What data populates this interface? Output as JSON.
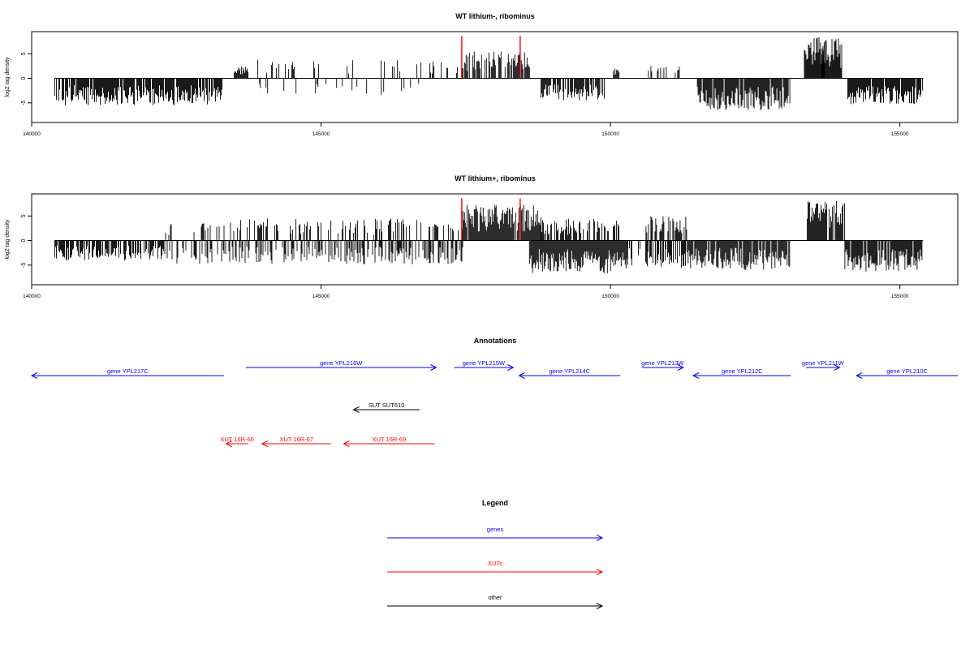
{
  "chart_data": [
    {
      "type": "bar",
      "title": "WT lithium-, ribominus",
      "xlabel": "",
      "ylabel": "log2 tag density",
      "xlim": [
        140000,
        156000
      ],
      "ylim": [
        -9,
        9.5
      ],
      "xticks": [
        140000,
        145000,
        150000,
        155000
      ],
      "yticks": [
        -5,
        0,
        5
      ],
      "ytick_labels": [
        "-5",
        "0",
        "5"
      ],
      "highlight_color": "#ff0000",
      "highlight_x": [
        147430,
        148440
      ],
      "highlight_y": 8.6,
      "plus_strand_segments": [
        {
          "from": 143500,
          "to": 143750,
          "max": 2.5
        },
        {
          "from": 143780,
          "to": 147450,
          "max": 3.8,
          "density": 0.12
        },
        {
          "from": 147450,
          "to": 148600,
          "max": 5.5,
          "density": 0.7
        },
        {
          "from": 150050,
          "to": 150150,
          "max": 2.0
        },
        {
          "from": 150600,
          "to": 151300,
          "max": 2.5,
          "density": 0.25
        },
        {
          "from": 153350,
          "to": 154000,
          "max": 8.5,
          "density": 0.95
        },
        {
          "from": 153650,
          "to": 153700,
          "max": 8.7
        }
      ],
      "minus_strand_segments": [
        {
          "from": 140400,
          "to": 143300,
          "max": -5.5,
          "density": 0.9
        },
        {
          "from": 143600,
          "to": 146700,
          "max": -3.5,
          "density": 0.08
        },
        {
          "from": 148800,
          "to": 149900,
          "max": -4.5,
          "density": 0.7
        },
        {
          "from": 151500,
          "to": 153100,
          "max": -6.5,
          "density": 0.9
        },
        {
          "from": 154100,
          "to": 155400,
          "max": -5.3,
          "density": 0.9
        }
      ]
    },
    {
      "type": "bar",
      "title": "WT lithium+, ribominus",
      "xlabel": "",
      "ylabel": "log2 tag density",
      "xlim": [
        140000,
        156000
      ],
      "ylim": [
        -9,
        9.5
      ],
      "xticks": [
        140000,
        145000,
        150000,
        155000
      ],
      "yticks": [
        -5,
        0,
        5
      ],
      "ytick_labels": [
        "-5",
        "0",
        "5"
      ],
      "highlight_color": "#ff0000",
      "highlight_x": [
        147430,
        148440
      ],
      "highlight_y": 8.6,
      "plus_strand_segments": [
        {
          "from": 142300,
          "to": 143500,
          "max": 3.8,
          "density": 0.25
        },
        {
          "from": 143500,
          "to": 147450,
          "max": 4.5,
          "density": 0.35
        },
        {
          "from": 147450,
          "to": 148800,
          "max": 7.3,
          "density": 0.95
        },
        {
          "from": 148800,
          "to": 150150,
          "max": 4.5,
          "density": 0.6
        },
        {
          "from": 150600,
          "to": 151350,
          "max": 5.0,
          "density": 0.6
        },
        {
          "from": 153400,
          "to": 154050,
          "max": 8.2,
          "density": 0.95
        }
      ],
      "minus_strand_segments": [
        {
          "from": 140400,
          "to": 142300,
          "max": -4.0,
          "density": 0.7
        },
        {
          "from": 142300,
          "to": 147450,
          "max": -4.8,
          "density": 0.45
        },
        {
          "from": 148600,
          "to": 150300,
          "max": -6.7,
          "density": 1.0
        },
        {
          "from": 150300,
          "to": 151300,
          "max": -5.5,
          "density": 0.6
        },
        {
          "from": 151300,
          "to": 153100,
          "max": -6.0,
          "density": 0.9
        },
        {
          "from": 154050,
          "to": 155400,
          "max": -6.3,
          "density": 0.9
        }
      ]
    }
  ],
  "annotations": {
    "title": "Annotations",
    "genes_color": "#0000ff",
    "xuts_color": "#ff0000",
    "other_color": "#000000",
    "genes": [
      {
        "label": "gene YPL217C",
        "start": 140000,
        "end": 143320,
        "strand": "-",
        "row": "low"
      },
      {
        "label": "gene YPL216W",
        "start": 143700,
        "end": 146990,
        "strand": "+",
        "row": "high"
      },
      {
        "label": "gene YPL215W",
        "start": 147300,
        "end": 148320,
        "strand": "+",
        "row": "high"
      },
      {
        "label": "gene YPL214C",
        "start": 148420,
        "end": 150170,
        "strand": "-",
        "row": "low"
      },
      {
        "label": "gene YPL213W",
        "start": 150540,
        "end": 151260,
        "strand": "+",
        "row": "high"
      },
      {
        "label": "gene YPL212C",
        "start": 151430,
        "end": 153120,
        "strand": "-",
        "row": "low"
      },
      {
        "label": "gene YPL211W",
        "start": 153380,
        "end": 153960,
        "strand": "+",
        "row": "high"
      },
      {
        "label": "gene YPL210C",
        "start": 154250,
        "end": 156000,
        "strand": "-",
        "row": "low"
      }
    ],
    "other": [
      {
        "label": "SUT SUT610",
        "start": 145560,
        "end": 146700,
        "strand": "-"
      }
    ],
    "xuts": [
      {
        "label": "XUT 16R-66",
        "start": 143360,
        "end": 143740,
        "strand": "-"
      },
      {
        "label": "XUT 16R-67",
        "start": 143980,
        "end": 145170,
        "strand": "-"
      },
      {
        "label": "XUT 16R-69",
        "start": 145390,
        "end": 146960,
        "strand": "-"
      }
    ]
  },
  "legend": {
    "title": "Legend",
    "items": [
      {
        "label": "genes",
        "color": "#0000ff"
      },
      {
        "label": "XUTs",
        "color": "#ff0000"
      },
      {
        "label": "other",
        "color": "#000000"
      }
    ]
  }
}
